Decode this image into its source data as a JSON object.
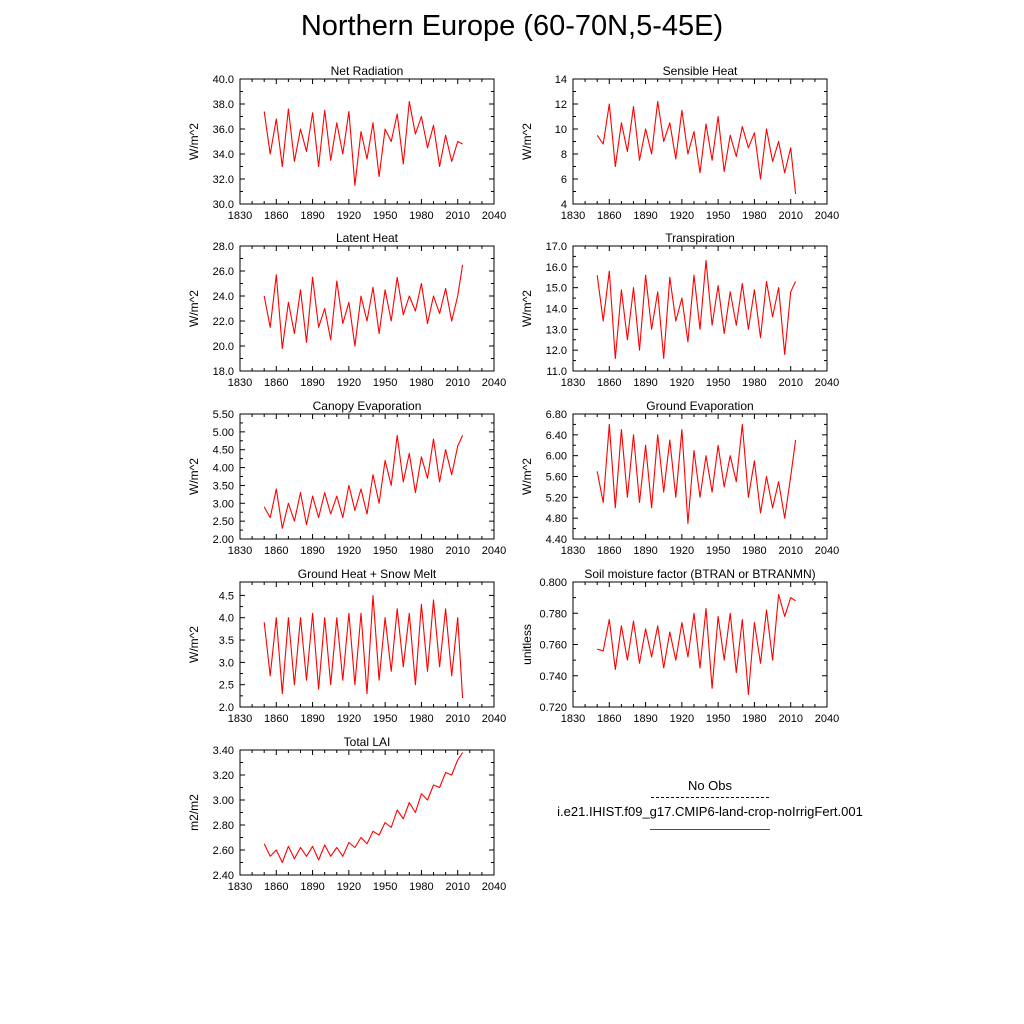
{
  "title": "Northern Europe (60-70N,5-45E)",
  "legend": {
    "obs_label": "No Obs",
    "model_label": "i.e21.IHIST.f09_g17.CMIP6-land-crop-noIrrigFert.001",
    "obs_color": "#000080",
    "model_color": "#ff0000"
  },
  "chart_data": [
    {
      "type": "line",
      "title": "Net Radiation",
      "ylabel": "W/m^2",
      "xlim": [
        1830,
        2040
      ],
      "ylim": [
        30.0,
        40.0
      ],
      "xticks": [
        "1830",
        "1860",
        "1890",
        "1920",
        "1950",
        "1980",
        "2010",
        "2040"
      ],
      "yticks": [
        "30.0",
        "32.0",
        "34.0",
        "36.0",
        "38.0",
        "40.0"
      ],
      "series": [
        {
          "color": "#ff0000",
          "x": [
            1850,
            1855,
            1860,
            1865,
            1870,
            1875,
            1880,
            1885,
            1890,
            1895,
            1900,
            1905,
            1910,
            1915,
            1920,
            1925,
            1930,
            1935,
            1940,
            1945,
            1950,
            1955,
            1960,
            1965,
            1970,
            1975,
            1980,
            1985,
            1990,
            1995,
            2000,
            2005,
            2010,
            2014
          ],
          "values": [
            37.4,
            34.0,
            36.8,
            33.0,
            37.6,
            33.4,
            36.0,
            34.2,
            37.3,
            33.0,
            37.5,
            33.5,
            36.5,
            34.0,
            37.4,
            31.5,
            35.8,
            33.6,
            36.5,
            32.2,
            36.0,
            35.0,
            37.2,
            33.2,
            38.2,
            35.6,
            37.0,
            34.5,
            36.3,
            33.0,
            35.5,
            33.4,
            35.0,
            34.8
          ]
        }
      ]
    },
    {
      "type": "line",
      "title": "Sensible Heat",
      "ylabel": "W/m^2",
      "xlim": [
        1830,
        2040
      ],
      "ylim": [
        4,
        14
      ],
      "xticks": [
        "1830",
        "1860",
        "1890",
        "1920",
        "1950",
        "1980",
        "2010",
        "2040"
      ],
      "yticks": [
        "4",
        "6",
        "8",
        "10",
        "12",
        "14"
      ],
      "series": [
        {
          "color": "#ff0000",
          "x": [
            1850,
            1855,
            1860,
            1865,
            1870,
            1875,
            1880,
            1885,
            1890,
            1895,
            1900,
            1905,
            1910,
            1915,
            1920,
            1925,
            1930,
            1935,
            1940,
            1945,
            1950,
            1955,
            1960,
            1965,
            1970,
            1975,
            1980,
            1985,
            1990,
            1995,
            2000,
            2005,
            2010,
            2014
          ],
          "values": [
            9.5,
            8.8,
            12.0,
            7.0,
            10.5,
            8.2,
            11.8,
            7.5,
            10.0,
            8.0,
            12.2,
            9.0,
            10.5,
            7.6,
            11.5,
            8.0,
            9.8,
            6.5,
            10.4,
            7.5,
            11.0,
            6.6,
            9.5,
            7.8,
            10.2,
            8.5,
            9.7,
            6.0,
            10.0,
            7.4,
            9.0,
            6.5,
            8.5,
            4.8
          ]
        }
      ]
    },
    {
      "type": "line",
      "title": "Latent Heat",
      "ylabel": "W/m^2",
      "xlim": [
        1830,
        2040
      ],
      "ylim": [
        18.0,
        28.0
      ],
      "xticks": [
        "1830",
        "1860",
        "1890",
        "1920",
        "1950",
        "1980",
        "2010",
        "2040"
      ],
      "yticks": [
        "18.0",
        "20.0",
        "22.0",
        "24.0",
        "26.0",
        "28.0"
      ],
      "series": [
        {
          "color": "#ff0000",
          "x": [
            1850,
            1855,
            1860,
            1865,
            1870,
            1875,
            1880,
            1885,
            1890,
            1895,
            1900,
            1905,
            1910,
            1915,
            1920,
            1925,
            1930,
            1935,
            1940,
            1945,
            1950,
            1955,
            1960,
            1965,
            1970,
            1975,
            1980,
            1985,
            1990,
            1995,
            2000,
            2005,
            2010,
            2014
          ],
          "values": [
            24.0,
            21.5,
            25.7,
            19.8,
            23.5,
            21.0,
            24.5,
            20.3,
            25.5,
            21.5,
            23.0,
            20.5,
            25.2,
            21.8,
            23.5,
            20.0,
            24.0,
            22.0,
            24.7,
            21.0,
            24.5,
            22.0,
            25.5,
            22.5,
            24.0,
            22.8,
            25.0,
            21.8,
            24.0,
            22.6,
            24.6,
            22.0,
            24.0,
            26.5
          ]
        }
      ]
    },
    {
      "type": "line",
      "title": "Transpiration",
      "ylabel": "W/m^2",
      "xlim": [
        1830,
        2040
      ],
      "ylim": [
        11.0,
        17.0
      ],
      "xticks": [
        "1830",
        "1860",
        "1890",
        "1920",
        "1950",
        "1980",
        "2010",
        "2040"
      ],
      "yticks": [
        "11.0",
        "12.0",
        "13.0",
        "14.0",
        "15.0",
        "16.0",
        "17.0"
      ],
      "series": [
        {
          "color": "#ff0000",
          "x": [
            1850,
            1855,
            1860,
            1865,
            1870,
            1875,
            1880,
            1885,
            1890,
            1895,
            1900,
            1905,
            1910,
            1915,
            1920,
            1925,
            1930,
            1935,
            1940,
            1945,
            1950,
            1955,
            1960,
            1965,
            1970,
            1975,
            1980,
            1985,
            1990,
            1995,
            2000,
            2005,
            2010,
            2014
          ],
          "values": [
            15.6,
            13.4,
            15.8,
            11.6,
            14.9,
            12.5,
            15.0,
            12.0,
            15.6,
            13.0,
            14.8,
            11.6,
            15.5,
            13.4,
            14.5,
            12.4,
            15.6,
            13.0,
            16.3,
            13.2,
            15.1,
            12.8,
            14.8,
            13.2,
            15.2,
            13.0,
            14.9,
            12.6,
            15.3,
            13.6,
            15.0,
            11.8,
            14.8,
            15.3
          ]
        }
      ]
    },
    {
      "type": "line",
      "title": "Canopy Evaporation",
      "ylabel": "W/m^2",
      "xlim": [
        1830,
        2040
      ],
      "ylim": [
        2.0,
        5.5
      ],
      "xticks": [
        "1830",
        "1860",
        "1890",
        "1920",
        "1950",
        "1980",
        "2010",
        "2040"
      ],
      "yticks": [
        "2.00",
        "2.50",
        "3.00",
        "3.50",
        "4.00",
        "4.50",
        "5.00",
        "5.50"
      ],
      "series": [
        {
          "color": "#ff0000",
          "x": [
            1850,
            1855,
            1860,
            1865,
            1870,
            1875,
            1880,
            1885,
            1890,
            1895,
            1900,
            1905,
            1910,
            1915,
            1920,
            1925,
            1930,
            1935,
            1940,
            1945,
            1950,
            1955,
            1960,
            1965,
            1970,
            1975,
            1980,
            1985,
            1990,
            1995,
            2000,
            2005,
            2010,
            2014
          ],
          "values": [
            2.9,
            2.6,
            3.4,
            2.3,
            3.0,
            2.5,
            3.3,
            2.4,
            3.2,
            2.6,
            3.3,
            2.7,
            3.2,
            2.6,
            3.5,
            2.8,
            3.4,
            2.7,
            3.8,
            3.0,
            4.2,
            3.5,
            4.9,
            3.6,
            4.4,
            3.3,
            4.3,
            3.7,
            4.8,
            3.6,
            4.5,
            3.8,
            4.6,
            4.9
          ]
        }
      ]
    },
    {
      "type": "line",
      "title": "Ground Evaporation",
      "ylabel": "W/m^2",
      "xlim": [
        1830,
        2040
      ],
      "ylim": [
        4.4,
        6.8
      ],
      "xticks": [
        "1830",
        "1860",
        "1890",
        "1920",
        "1950",
        "1980",
        "2010",
        "2040"
      ],
      "yticks": [
        "4.40",
        "4.80",
        "5.20",
        "5.60",
        "6.00",
        "6.40",
        "6.80"
      ],
      "series": [
        {
          "color": "#ff0000",
          "x": [
            1850,
            1855,
            1860,
            1865,
            1870,
            1875,
            1880,
            1885,
            1890,
            1895,
            1900,
            1905,
            1910,
            1915,
            1920,
            1925,
            1930,
            1935,
            1940,
            1945,
            1950,
            1955,
            1960,
            1965,
            1970,
            1975,
            1980,
            1985,
            1990,
            1995,
            2000,
            2005,
            2010,
            2014
          ],
          "values": [
            5.7,
            5.1,
            6.6,
            5.0,
            6.5,
            5.2,
            6.4,
            5.1,
            6.2,
            5.0,
            6.4,
            5.3,
            6.3,
            5.2,
            6.5,
            4.7,
            6.1,
            5.2,
            6.0,
            5.3,
            6.2,
            5.4,
            6.0,
            5.5,
            6.6,
            5.2,
            5.9,
            4.9,
            5.6,
            5.0,
            5.5,
            4.8,
            5.6,
            6.3
          ]
        }
      ]
    },
    {
      "type": "line",
      "title": "Ground Heat + Snow Melt",
      "ylabel": "W/m^2",
      "xlim": [
        1830,
        2040
      ],
      "ylim": [
        2.0,
        4.8
      ],
      "xticks": [
        "1830",
        "1860",
        "1890",
        "1920",
        "1950",
        "1980",
        "2010",
        "2040"
      ],
      "yticks": [
        "2.0",
        "2.5",
        "3.0",
        "3.5",
        "4.0",
        "4.5"
      ],
      "series": [
        {
          "color": "#ff0000",
          "x": [
            1850,
            1855,
            1860,
            1865,
            1870,
            1875,
            1880,
            1885,
            1890,
            1895,
            1900,
            1905,
            1910,
            1915,
            1920,
            1925,
            1930,
            1935,
            1940,
            1945,
            1950,
            1955,
            1960,
            1965,
            1970,
            1975,
            1980,
            1985,
            1990,
            1995,
            2000,
            2005,
            2010,
            2014
          ],
          "values": [
            3.9,
            2.7,
            4.0,
            2.3,
            4.0,
            2.5,
            4.0,
            2.6,
            4.1,
            2.4,
            4.0,
            2.5,
            4.0,
            2.6,
            4.1,
            2.5,
            4.1,
            2.3,
            4.5,
            2.6,
            4.0,
            2.8,
            4.2,
            2.9,
            4.1,
            2.5,
            4.3,
            2.8,
            4.4,
            2.9,
            4.2,
            2.7,
            4.0,
            2.2
          ]
        }
      ]
    },
    {
      "type": "line",
      "title": "Soil moisture factor (BTRAN or BTRANMN)",
      "ylabel": "unitless",
      "xlim": [
        1830,
        2040
      ],
      "ylim": [
        0.72,
        0.8
      ],
      "xticks": [
        "1830",
        "1860",
        "1890",
        "1920",
        "1950",
        "1980",
        "2010",
        "2040"
      ],
      "yticks": [
        "0.720",
        "0.740",
        "0.760",
        "0.780",
        "0.800"
      ],
      "series": [
        {
          "color": "#ff0000",
          "x": [
            1850,
            1855,
            1860,
            1865,
            1870,
            1875,
            1880,
            1885,
            1890,
            1895,
            1900,
            1905,
            1910,
            1915,
            1920,
            1925,
            1930,
            1935,
            1940,
            1945,
            1950,
            1955,
            1960,
            1965,
            1970,
            1975,
            1980,
            1985,
            1990,
            1995,
            2000,
            2005,
            2010,
            2014
          ],
          "values": [
            0.757,
            0.756,
            0.776,
            0.744,
            0.772,
            0.75,
            0.775,
            0.748,
            0.77,
            0.752,
            0.772,
            0.745,
            0.768,
            0.75,
            0.774,
            0.752,
            0.78,
            0.745,
            0.783,
            0.732,
            0.778,
            0.75,
            0.78,
            0.742,
            0.776,
            0.728,
            0.774,
            0.748,
            0.782,
            0.75,
            0.792,
            0.778,
            0.79,
            0.788
          ]
        }
      ]
    },
    {
      "type": "line",
      "title": "Total LAI",
      "ylabel": "m2/m2",
      "xlim": [
        1830,
        2040
      ],
      "ylim": [
        2.4,
        3.4
      ],
      "xticks": [
        "1830",
        "1860",
        "1890",
        "1920",
        "1950",
        "1980",
        "2010",
        "2040"
      ],
      "yticks": [
        "2.40",
        "2.60",
        "2.80",
        "3.00",
        "3.20",
        "3.40"
      ],
      "series": [
        {
          "color": "#ff0000",
          "x": [
            1850,
            1855,
            1860,
            1865,
            1870,
            1875,
            1880,
            1885,
            1890,
            1895,
            1900,
            1905,
            1910,
            1915,
            1920,
            1925,
            1930,
            1935,
            1940,
            1945,
            1950,
            1955,
            1960,
            1965,
            1970,
            1975,
            1980,
            1985,
            1990,
            1995,
            2000,
            2005,
            2010,
            2014
          ],
          "values": [
            2.65,
            2.55,
            2.6,
            2.5,
            2.63,
            2.53,
            2.62,
            2.55,
            2.63,
            2.52,
            2.64,
            2.55,
            2.62,
            2.55,
            2.66,
            2.62,
            2.7,
            2.65,
            2.75,
            2.72,
            2.82,
            2.78,
            2.92,
            2.85,
            2.98,
            2.9,
            3.05,
            3.0,
            3.12,
            3.1,
            3.22,
            3.2,
            3.32,
            3.38
          ]
        }
      ]
    }
  ]
}
